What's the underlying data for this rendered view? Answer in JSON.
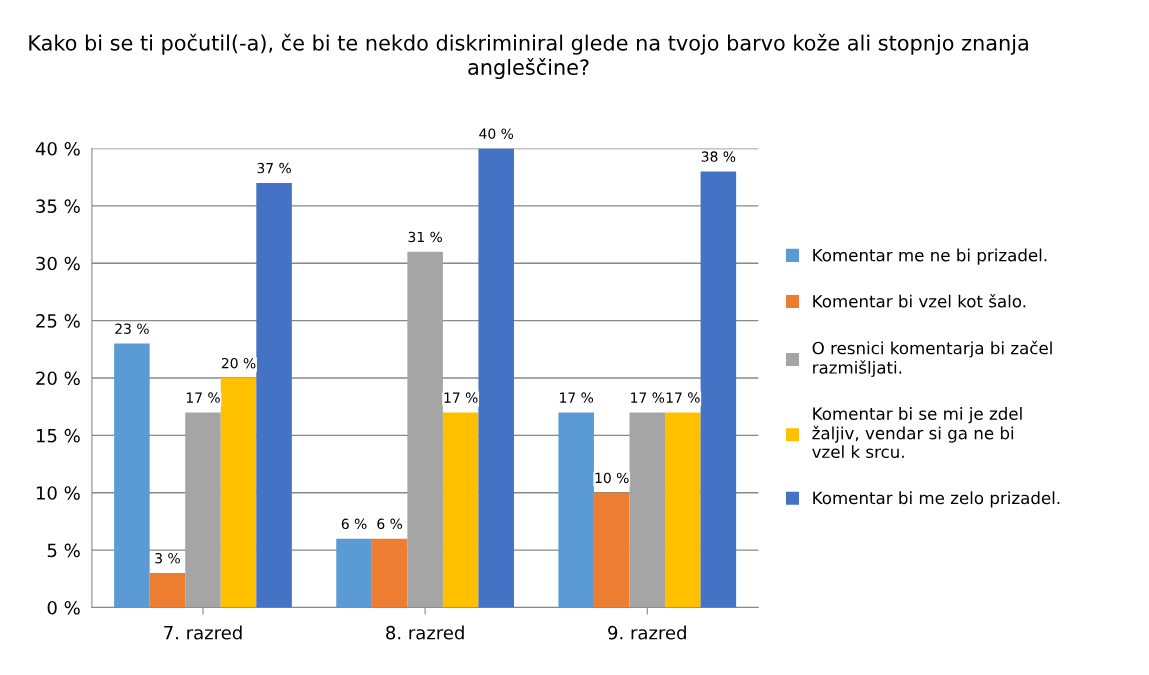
{
  "chart_data": {
    "type": "bar",
    "title": "Kako bi se ti počutil(-a), če bi te nekdo diskriminiral glede na tvojo barvo kože ali stopnjo znanja angleščine?",
    "categories": [
      "7. razred",
      "8. razred",
      "9. razred"
    ],
    "series": [
      {
        "name": "Komentar me ne bi prizadel.",
        "color": "#5b9bd5",
        "values": [
          23,
          6,
          17
        ],
        "value_labels": [
          "23 %",
          "6 %",
          "17 %"
        ]
      },
      {
        "name": "Komentar bi vzel kot šalo.",
        "color": "#ed7d31",
        "values": [
          3,
          6,
          10
        ],
        "value_labels": [
          "3 %",
          "6 %",
          "10 %"
        ]
      },
      {
        "name": "O resnici komentarja bi začel razmišljati.",
        "color": "#a5a5a5",
        "values": [
          17,
          31,
          17
        ],
        "value_labels": [
          "17 %",
          "31 %",
          "17 %"
        ]
      },
      {
        "name": "Komentar bi se mi je zdel žaljiv, vendar si ga ne bi vzel k srcu.",
        "color": "#ffc000",
        "values": [
          20,
          17,
          17
        ],
        "value_labels": [
          "20 %",
          "17 %",
          "17 %"
        ]
      },
      {
        "name": "Komentar bi me zelo prizadel.",
        "color": "#4472c4",
        "values": [
          37,
          40,
          38
        ],
        "value_labels": [
          "37 %",
          "40 %",
          "38 %"
        ]
      }
    ],
    "ylim": [
      0,
      40
    ],
    "yticks": [
      {
        "value": 0,
        "label": "0 %"
      },
      {
        "value": 5,
        "label": "5 %"
      },
      {
        "value": 10,
        "label": "10 %"
      },
      {
        "value": 15,
        "label": "15 %"
      },
      {
        "value": 20,
        "label": "20 %"
      },
      {
        "value": 25,
        "label": "25 %"
      },
      {
        "value": 30,
        "label": "30 %"
      },
      {
        "value": 35,
        "label": "35 %"
      },
      {
        "value": 40,
        "label": "40 %"
      }
    ],
    "grid": "y",
    "legend": "right"
  }
}
